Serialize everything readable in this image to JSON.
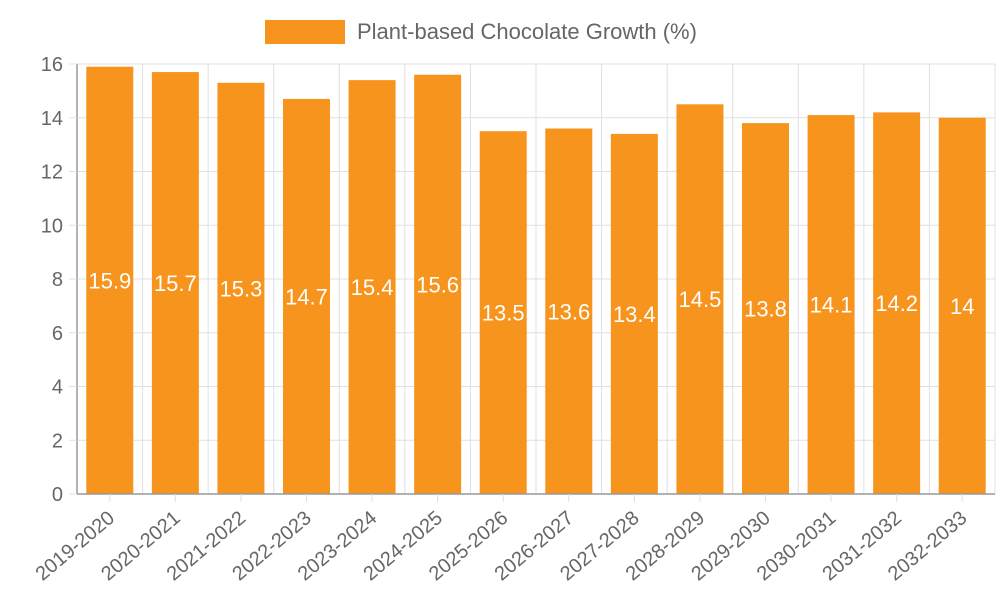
{
  "chart_data": {
    "type": "bar",
    "categories": [
      "2019-2020",
      "2020-2021",
      "2021-2022",
      "2022-2023",
      "2023-2024",
      "2024-2025",
      "2025-2026",
      "2026-2027",
      "2027-2028",
      "2028-2029",
      "2029-2030",
      "2030-2031",
      "2031-2032",
      "2032-2033"
    ],
    "series": [
      {
        "name": "Plant-based Chocolate Growth (%)",
        "values": [
          15.9,
          15.7,
          15.3,
          14.7,
          15.4,
          15.6,
          13.5,
          13.6,
          13.4,
          14.5,
          13.8,
          14.1,
          14.2,
          14
        ],
        "color": "#f7941d"
      }
    ],
    "yticks": [
      0,
      2,
      4,
      6,
      8,
      10,
      12,
      14,
      16
    ],
    "ylim": [
      0,
      16
    ],
    "grid": true,
    "legend_position": "top",
    "data_labels": true,
    "colors": {
      "bar": "#f7941d",
      "grid": "#e0e0e0",
      "axis": "#999999",
      "text": "#666666",
      "label": "#ffffff"
    }
  }
}
